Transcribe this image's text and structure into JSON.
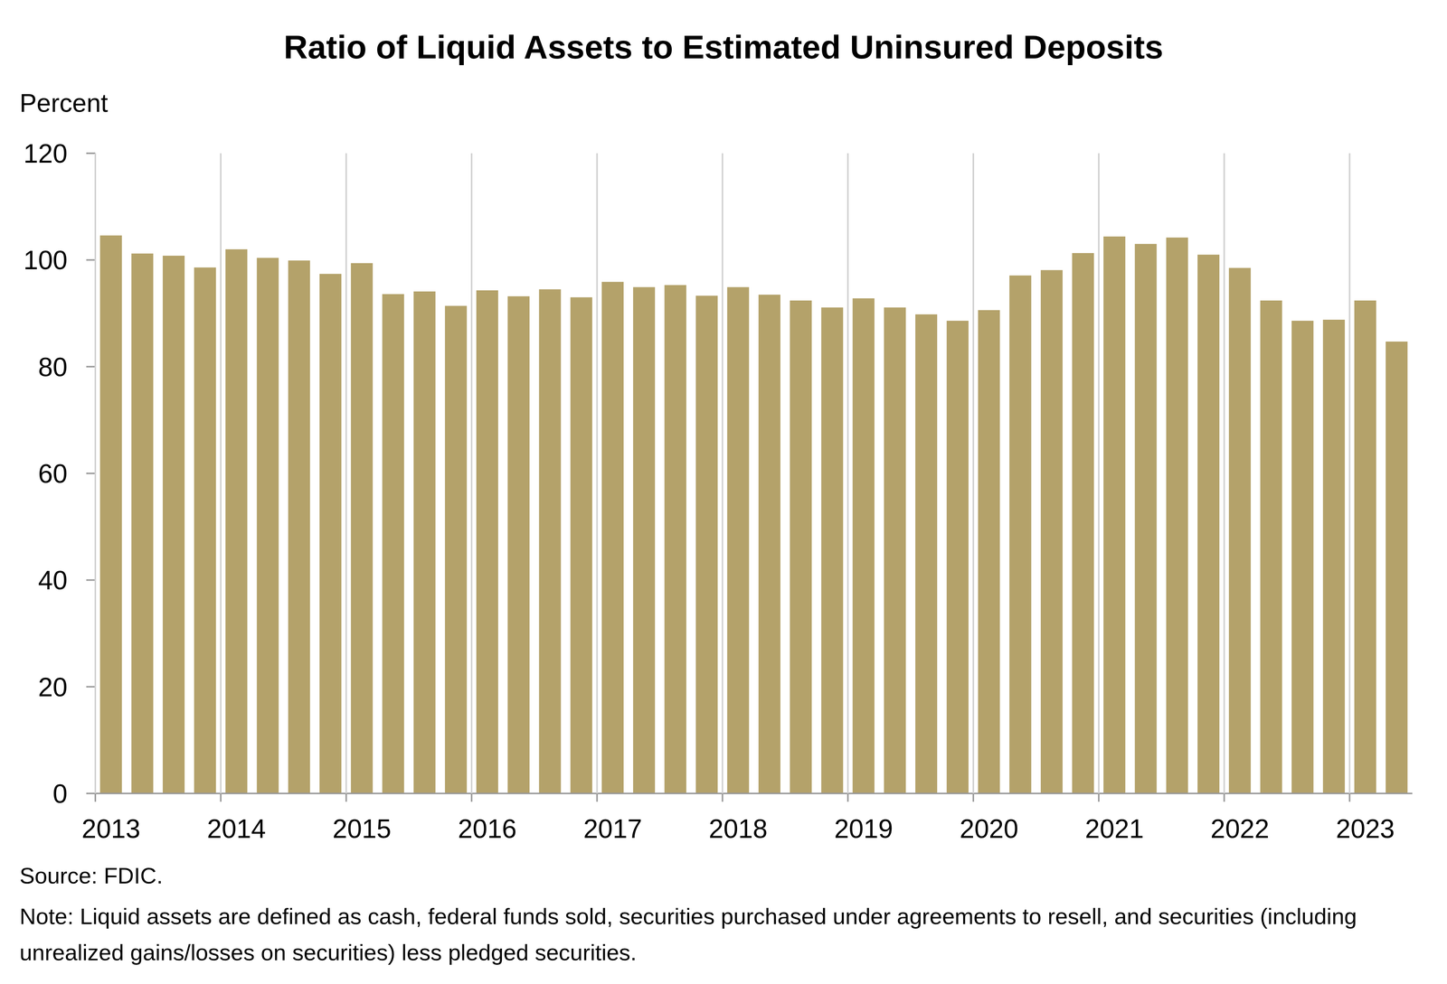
{
  "chart_data": {
    "type": "bar",
    "title": "Ratio of Liquid Assets to Estimated Uninsured Deposits",
    "y_label": "Percent",
    "categories": [
      "2013",
      null,
      null,
      null,
      "2014",
      null,
      null,
      null,
      "2015",
      null,
      null,
      null,
      "2016",
      null,
      null,
      null,
      "2017",
      null,
      null,
      null,
      "2018",
      null,
      null,
      null,
      "2019",
      null,
      null,
      null,
      "2020",
      null,
      null,
      null,
      "2021",
      null,
      null,
      null,
      "2022",
      null,
      null,
      null,
      "2023",
      null
    ],
    "values": [
      104.6,
      101.2,
      100.8,
      98.6,
      102.0,
      100.4,
      99.9,
      97.4,
      99.4,
      93.6,
      94.1,
      91.4,
      94.3,
      93.2,
      94.5,
      93.0,
      95.9,
      94.9,
      95.3,
      93.3,
      94.9,
      93.5,
      92.4,
      91.1,
      92.8,
      91.1,
      89.8,
      88.6,
      90.6,
      97.1,
      98.1,
      101.3,
      104.4,
      103.0,
      104.2,
      101.0,
      98.5,
      92.4,
      88.6,
      88.8,
      92.4,
      84.7
    ],
    "color": "#b4a26a",
    "ylim": [
      0,
      120
    ],
    "yticks": [
      0,
      20,
      40,
      60,
      80,
      100,
      120
    ],
    "grid": true,
    "source": "Source: FDIC.",
    "note": "Note: Liquid assets are defined as cash, federal funds sold, securities purchased under agreements to resell, and securities (including unrealized gains/losses on securities) less pledged securities."
  }
}
